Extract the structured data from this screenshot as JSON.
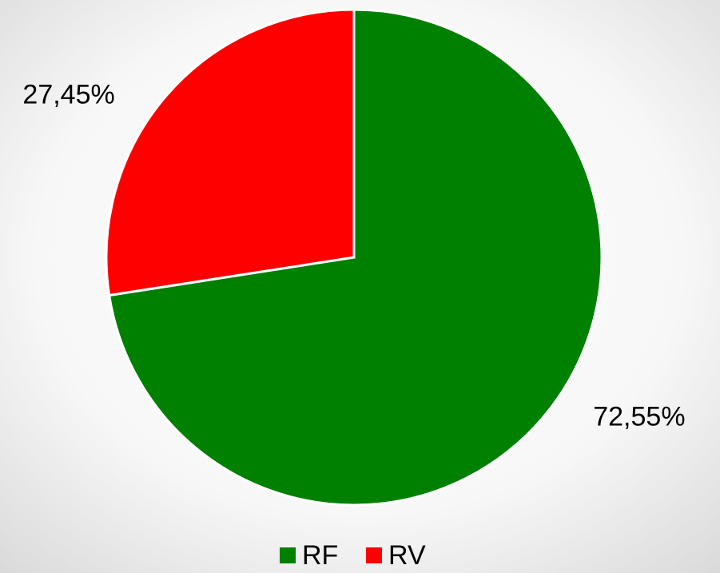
{
  "chart_data": {
    "type": "pie",
    "categories": [
      "RF",
      "RV"
    ],
    "values": [
      72.55,
      27.45
    ],
    "value_labels": [
      "72,55%",
      "27,45%"
    ],
    "colors": [
      "#008000",
      "#ff0000"
    ],
    "legend": "bottom"
  }
}
